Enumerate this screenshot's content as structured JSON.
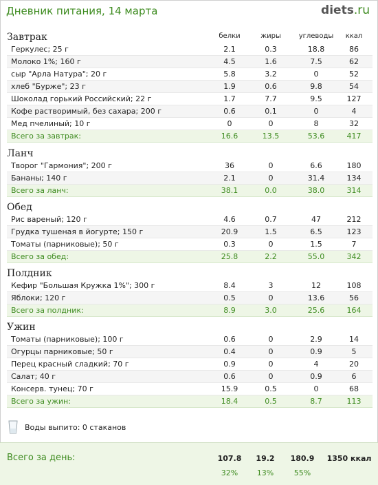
{
  "header": {
    "title": "Дневник питания, 14 марта",
    "logo_main": "diets",
    "logo_suffix": ".ru"
  },
  "columns": {
    "protein": "белки",
    "fat": "жиры",
    "carbs": "углеводы",
    "kcal": "ккал"
  },
  "sections": [
    {
      "title": "Завтрак",
      "items": [
        [
          "Геркулес; 25 г",
          "2.1",
          "0.3",
          "18.8",
          "86"
        ],
        [
          "Молоко 1%; 160 г",
          "4.5",
          "1.6",
          "7.5",
          "62"
        ],
        [
          "сыр \"Арла Натура\"; 20 г",
          "5.8",
          "3.2",
          "0",
          "52"
        ],
        [
          "хлеб \"Бурже\"; 23 г",
          "1.9",
          "0.6",
          "9.8",
          "54"
        ],
        [
          "Шоколад горький Российский; 22 г",
          "1.7",
          "7.7",
          "9.5",
          "127"
        ],
        [
          "Кофе растворимый, без сахара; 200 г",
          "0.6",
          "0.1",
          "0",
          "4"
        ],
        [
          "Мед пчелиный; 10 г",
          "0",
          "0",
          "8",
          "32"
        ]
      ],
      "total": [
        "Всего за завтрак:",
        "16.6",
        "13.5",
        "53.6",
        "417"
      ]
    },
    {
      "title": "Ланч",
      "items": [
        [
          "Творог \"Гармония\"; 200 г",
          "36",
          "0",
          "6.6",
          "180"
        ],
        [
          "Бананы; 140 г",
          "2.1",
          "0",
          "31.4",
          "134"
        ]
      ],
      "total": [
        "Всего за ланч:",
        "38.1",
        "0.0",
        "38.0",
        "314"
      ]
    },
    {
      "title": "Обед",
      "items": [
        [
          "Рис вареный; 120 г",
          "4.6",
          "0.7",
          "47",
          "212"
        ],
        [
          "Грудка тушеная в йогурте; 150 г",
          "20.9",
          "1.5",
          "6.5",
          "123"
        ],
        [
          "Томаты (парниковые); 50 г",
          "0.3",
          "0",
          "1.5",
          "7"
        ]
      ],
      "total": [
        "Всего за обед:",
        "25.8",
        "2.2",
        "55.0",
        "342"
      ]
    },
    {
      "title": "Полдник",
      "items": [
        [
          "Кефир \"Большая Кружка 1%\"; 300 г",
          "8.4",
          "3",
          "12",
          "108"
        ],
        [
          "Яблоки; 120 г",
          "0.5",
          "0",
          "13.6",
          "56"
        ]
      ],
      "total": [
        "Всего за полдник:",
        "8.9",
        "3.0",
        "25.6",
        "164"
      ]
    },
    {
      "title": "Ужин",
      "items": [
        [
          "Томаты (парниковые); 100 г",
          "0.6",
          "0",
          "2.9",
          "14"
        ],
        [
          "Огурцы парниковые; 50 г",
          "0.4",
          "0",
          "0.9",
          "5"
        ],
        [
          "Перец красный сладкий; 70 г",
          "0.9",
          "0",
          "4",
          "20"
        ],
        [
          "Салат; 40 г",
          "0.6",
          "0",
          "0.9",
          "6"
        ],
        [
          "Консерв. тунец; 70 г",
          "15.9",
          "0.5",
          "0",
          "68"
        ]
      ],
      "total": [
        "Всего за ужин:",
        "18.4",
        "0.5",
        "8.7",
        "113"
      ]
    }
  ],
  "water": {
    "text": "Воды выпито: 0 стаканов",
    "icon": "glass-icon"
  },
  "day_total": {
    "label": "Всего за день:",
    "protein": "107.8",
    "fat": "19.2",
    "carbs": "180.9",
    "kcal": "1350 ккал",
    "protein_pct": "32%",
    "fat_pct": "13%",
    "carbs_pct": "55%"
  },
  "colors": {
    "accent": "#3d8b1f",
    "total_bg": "#eef6e6"
  }
}
